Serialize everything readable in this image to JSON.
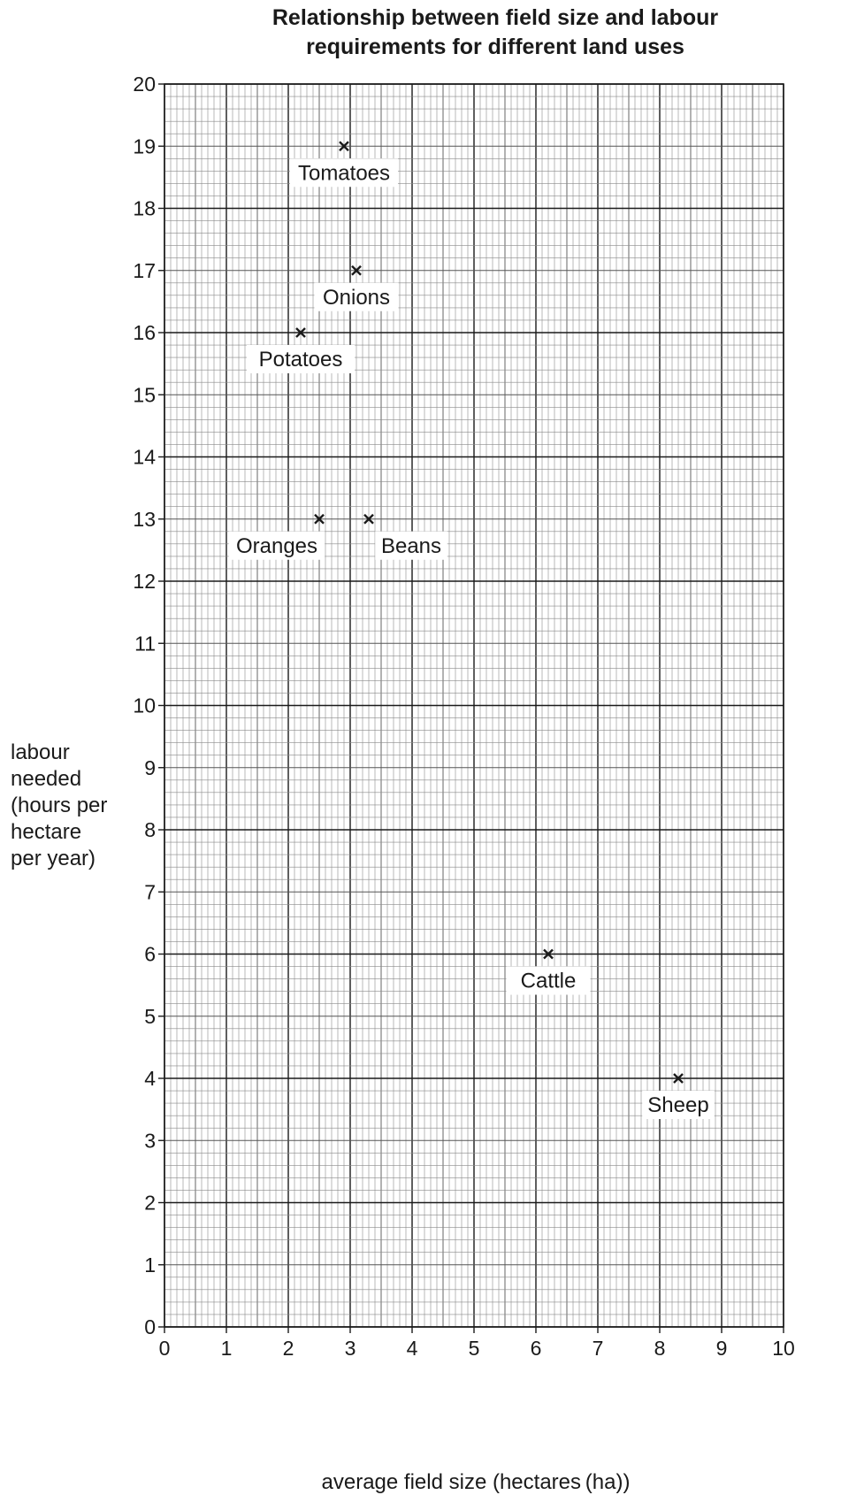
{
  "chart_data": {
    "type": "scatter",
    "title_lines": [
      "Relationship between field size and labour",
      "requirements for different land uses"
    ],
    "xlabel": "average field size (hectares (ha))",
    "ylabel_lines": [
      "labour",
      "needed",
      "(hours per",
      "hectare",
      "per year)"
    ],
    "xlim": [
      0,
      10
    ],
    "ylim": [
      0,
      20
    ],
    "x_ticks": [
      0,
      1,
      2,
      3,
      4,
      5,
      6,
      7,
      8,
      9,
      10
    ],
    "y_ticks": [
      0,
      1,
      2,
      3,
      4,
      5,
      6,
      7,
      8,
      9,
      10,
      11,
      12,
      13,
      14,
      15,
      16,
      17,
      18,
      19,
      20
    ],
    "grid": true,
    "marker": "x",
    "points": [
      {
        "label": "Tomatoes",
        "x": 2.9,
        "y": 19
      },
      {
        "label": "Onions",
        "x": 3.1,
        "y": 17
      },
      {
        "label": "Potatoes",
        "x": 2.2,
        "y": 16
      },
      {
        "label": "Oranges",
        "x": 2.5,
        "y": 13
      },
      {
        "label": "Beans",
        "x": 3.3,
        "y": 13
      },
      {
        "label": "Cattle",
        "x": 6.2,
        "y": 6
      },
      {
        "label": "Sheep",
        "x": 8.3,
        "y": 4
      }
    ]
  }
}
